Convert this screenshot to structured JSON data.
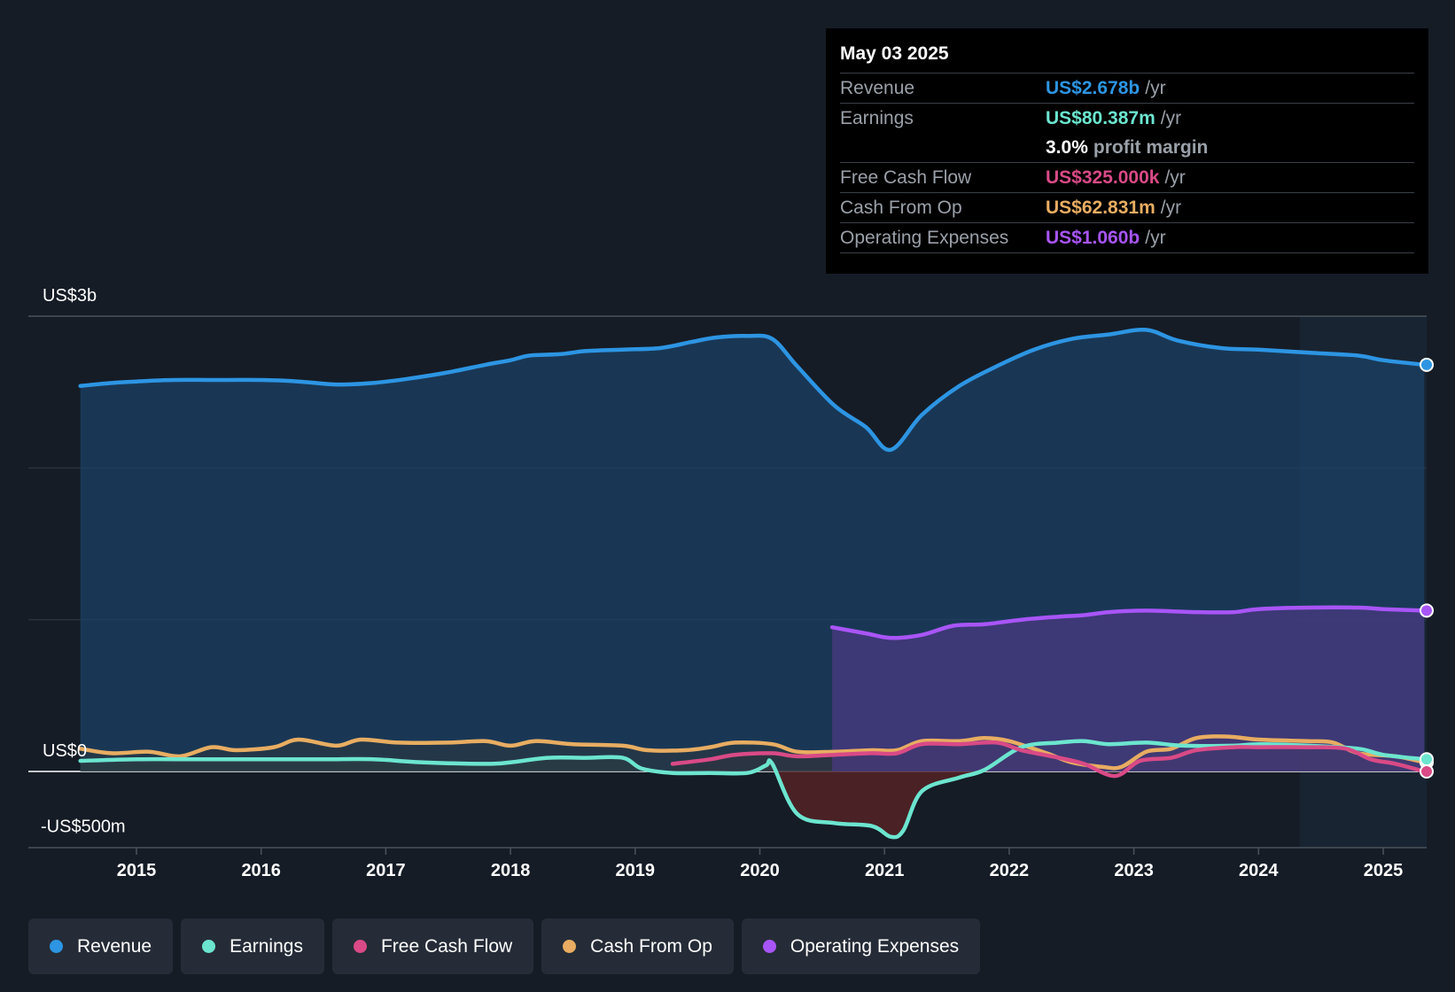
{
  "tooltip": {
    "date": "May 03 2025",
    "rows": [
      {
        "label": "Revenue",
        "value": "US$2.678b",
        "unit": "/yr",
        "color": "#2d95e3"
      },
      {
        "label": "Earnings",
        "value": "US$80.387m",
        "unit": "/yr",
        "color": "#6ce5cf"
      },
      {
        "label": "",
        "value": "3.0%",
        "unit": "profit margin",
        "color": "#ffffff"
      },
      {
        "label": "Free Cash Flow",
        "value": "US$325.000k",
        "unit": "/yr",
        "color": "#d94a86"
      },
      {
        "label": "Cash From Op",
        "value": "US$62.831m",
        "unit": "/yr",
        "color": "#e8ad62"
      },
      {
        "label": "Operating Expenses",
        "value": "US$1.060b",
        "unit": "/yr",
        "color": "#a855f7"
      }
    ]
  },
  "legend": [
    {
      "label": "Revenue",
      "color": "#2d95e3"
    },
    {
      "label": "Earnings",
      "color": "#6ce5cf"
    },
    {
      "label": "Free Cash Flow",
      "color": "#d94a86"
    },
    {
      "label": "Cash From Op",
      "color": "#e8ad62"
    },
    {
      "label": "Operating Expenses",
      "color": "#a855f7"
    }
  ],
  "chart_data": {
    "type": "line",
    "title": "",
    "xlabel": "",
    "ylabel": "",
    "y_axis_labels": [
      "US$3b",
      "US$0",
      "-US$500m"
    ],
    "x_ticks": [
      "2015",
      "2016",
      "2017",
      "2018",
      "2019",
      "2020",
      "2021",
      "2022",
      "2023",
      "2024",
      "2025"
    ],
    "xlim": [
      2014.1,
      2025.35
    ],
    "ylim": [
      -0.5,
      3.0
    ],
    "units": "US$ billions",
    "forecast_shade_start": 2024.33,
    "series": [
      {
        "name": "Revenue",
        "color": "#2d95e3",
        "points": [
          [
            2014.55,
            2.54
          ],
          [
            2014.8,
            2.56
          ],
          [
            2015.0,
            2.57
          ],
          [
            2015.3,
            2.58
          ],
          [
            2015.6,
            2.58
          ],
          [
            2016.0,
            2.58
          ],
          [
            2016.3,
            2.57
          ],
          [
            2016.6,
            2.55
          ],
          [
            2016.9,
            2.56
          ],
          [
            2017.2,
            2.59
          ],
          [
            2017.5,
            2.63
          ],
          [
            2017.8,
            2.68
          ],
          [
            2018.0,
            2.71
          ],
          [
            2018.15,
            2.74
          ],
          [
            2018.4,
            2.75
          ],
          [
            2018.6,
            2.77
          ],
          [
            2018.9,
            2.78
          ],
          [
            2019.2,
            2.79
          ],
          [
            2019.45,
            2.83
          ],
          [
            2019.65,
            2.86
          ],
          [
            2019.9,
            2.87
          ],
          [
            2020.1,
            2.85
          ],
          [
            2020.3,
            2.67
          ],
          [
            2020.6,
            2.41
          ],
          [
            2020.85,
            2.27
          ],
          [
            2021.05,
            2.12
          ],
          [
            2021.3,
            2.35
          ],
          [
            2021.6,
            2.54
          ],
          [
            2021.9,
            2.67
          ],
          [
            2022.2,
            2.78
          ],
          [
            2022.5,
            2.85
          ],
          [
            2022.8,
            2.88
          ],
          [
            2023.1,
            2.91
          ],
          [
            2023.35,
            2.84
          ],
          [
            2023.7,
            2.79
          ],
          [
            2024.0,
            2.78
          ],
          [
            2024.4,
            2.76
          ],
          [
            2024.8,
            2.74
          ],
          [
            2025.0,
            2.71
          ],
          [
            2025.33,
            2.68
          ]
        ]
      },
      {
        "name": "Earnings",
        "color": "#6ce5cf",
        "points": [
          [
            2014.55,
            0.07
          ],
          [
            2015.0,
            0.08
          ],
          [
            2015.5,
            0.08
          ],
          [
            2016.0,
            0.08
          ],
          [
            2016.5,
            0.08
          ],
          [
            2016.9,
            0.08
          ],
          [
            2017.3,
            0.06
          ],
          [
            2017.8,
            0.05
          ],
          [
            2018.0,
            0.06
          ],
          [
            2018.3,
            0.09
          ],
          [
            2018.6,
            0.09
          ],
          [
            2018.9,
            0.09
          ],
          [
            2019.05,
            0.02
          ],
          [
            2019.3,
            -0.01
          ],
          [
            2019.6,
            -0.01
          ],
          [
            2019.9,
            -0.01
          ],
          [
            2020.05,
            0.04
          ],
          [
            2020.1,
            0.05
          ],
          [
            2020.3,
            -0.28
          ],
          [
            2020.6,
            -0.34
          ],
          [
            2020.9,
            -0.36
          ],
          [
            2021.05,
            -0.43
          ],
          [
            2021.15,
            -0.39
          ],
          [
            2021.3,
            -0.13
          ],
          [
            2021.6,
            -0.04
          ],
          [
            2021.8,
            0.01
          ],
          [
            2022.1,
            0.16
          ],
          [
            2022.4,
            0.19
          ],
          [
            2022.6,
            0.2
          ],
          [
            2022.8,
            0.18
          ],
          [
            2023.1,
            0.19
          ],
          [
            2023.4,
            0.17
          ],
          [
            2023.8,
            0.17
          ],
          [
            2024.0,
            0.18
          ],
          [
            2024.4,
            0.17
          ],
          [
            2024.8,
            0.15
          ],
          [
            2025.0,
            0.11
          ],
          [
            2025.33,
            0.08
          ]
        ]
      },
      {
        "name": "Free Cash Flow",
        "color": "#d94a86",
        "points": [
          [
            2019.3,
            0.05
          ],
          [
            2019.6,
            0.08
          ],
          [
            2019.8,
            0.11
          ],
          [
            2020.1,
            0.12
          ],
          [
            2020.3,
            0.1
          ],
          [
            2020.6,
            0.11
          ],
          [
            2020.9,
            0.12
          ],
          [
            2021.1,
            0.12
          ],
          [
            2021.3,
            0.18
          ],
          [
            2021.6,
            0.18
          ],
          [
            2021.9,
            0.19
          ],
          [
            2022.1,
            0.14
          ],
          [
            2022.4,
            0.09
          ],
          [
            2022.6,
            0.05
          ],
          [
            2022.85,
            -0.03
          ],
          [
            2023.05,
            0.07
          ],
          [
            2023.3,
            0.09
          ],
          [
            2023.5,
            0.14
          ],
          [
            2023.8,
            0.16
          ],
          [
            2024.0,
            0.16
          ],
          [
            2024.4,
            0.16
          ],
          [
            2024.7,
            0.15
          ],
          [
            2024.9,
            0.08
          ],
          [
            2025.1,
            0.05
          ],
          [
            2025.33,
            0.0
          ]
        ]
      },
      {
        "name": "Cash From Op",
        "color": "#e8ad62",
        "points": [
          [
            2014.55,
            0.15
          ],
          [
            2014.8,
            0.12
          ],
          [
            2015.1,
            0.13
          ],
          [
            2015.35,
            0.1
          ],
          [
            2015.6,
            0.16
          ],
          [
            2015.8,
            0.14
          ],
          [
            2016.1,
            0.16
          ],
          [
            2016.3,
            0.21
          ],
          [
            2016.6,
            0.17
          ],
          [
            2016.8,
            0.21
          ],
          [
            2017.1,
            0.19
          ],
          [
            2017.5,
            0.19
          ],
          [
            2017.8,
            0.2
          ],
          [
            2018.0,
            0.17
          ],
          [
            2018.2,
            0.2
          ],
          [
            2018.5,
            0.18
          ],
          [
            2018.9,
            0.17
          ],
          [
            2019.1,
            0.14
          ],
          [
            2019.4,
            0.14
          ],
          [
            2019.6,
            0.16
          ],
          [
            2019.8,
            0.19
          ],
          [
            2020.1,
            0.18
          ],
          [
            2020.3,
            0.13
          ],
          [
            2020.6,
            0.13
          ],
          [
            2020.9,
            0.14
          ],
          [
            2021.1,
            0.14
          ],
          [
            2021.3,
            0.2
          ],
          [
            2021.6,
            0.2
          ],
          [
            2021.8,
            0.22
          ],
          [
            2022.0,
            0.2
          ],
          [
            2022.3,
            0.12
          ],
          [
            2022.5,
            0.06
          ],
          [
            2022.75,
            0.03
          ],
          [
            2022.9,
            0.03
          ],
          [
            2023.1,
            0.13
          ],
          [
            2023.3,
            0.15
          ],
          [
            2023.5,
            0.22
          ],
          [
            2023.75,
            0.23
          ],
          [
            2024.0,
            0.21
          ],
          [
            2024.4,
            0.2
          ],
          [
            2024.6,
            0.19
          ],
          [
            2024.8,
            0.12
          ],
          [
            2025.1,
            0.1
          ],
          [
            2025.33,
            0.06
          ]
        ]
      },
      {
        "name": "Operating Expenses",
        "color": "#a855f7",
        "points": [
          [
            2020.58,
            0.95
          ],
          [
            2020.85,
            0.91
          ],
          [
            2021.05,
            0.88
          ],
          [
            2021.3,
            0.9
          ],
          [
            2021.55,
            0.96
          ],
          [
            2021.8,
            0.97
          ],
          [
            2022.1,
            1.0
          ],
          [
            2022.4,
            1.02
          ],
          [
            2022.6,
            1.03
          ],
          [
            2022.8,
            1.05
          ],
          [
            2023.1,
            1.06
          ],
          [
            2023.5,
            1.05
          ],
          [
            2023.8,
            1.05
          ],
          [
            2024.0,
            1.07
          ],
          [
            2024.4,
            1.08
          ],
          [
            2024.8,
            1.08
          ],
          [
            2025.0,
            1.07
          ],
          [
            2025.33,
            1.06
          ]
        ]
      }
    ]
  }
}
